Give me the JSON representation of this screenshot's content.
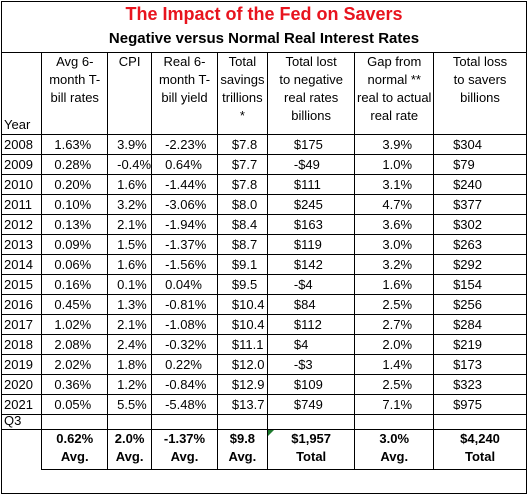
{
  "title": "The Impact of the Fed on Savers",
  "subtitle": "Negative versus Normal Real Interest Rates",
  "headers": {
    "year": "Year",
    "cols": [
      [
        "Avg 6-",
        "month T-",
        "bill rates"
      ],
      [
        "CPI"
      ],
      [
        "Real 6-",
        "month T-",
        "bill yield"
      ],
      [
        "Total",
        "savings",
        "trillions",
        "*"
      ],
      [
        "Total lost",
        "to negative",
        "real rates",
        "billions"
      ],
      [
        "Gap from",
        "normal **",
        "real to actual",
        "real rate"
      ],
      [
        "Total loss",
        "to savers",
        "billions"
      ]
    ]
  },
  "rows": [
    {
      "year": "2008",
      "cells": [
        "1.63%",
        "3.9%",
        "-2.23%",
        "$7.8",
        "$175",
        "3.9%",
        "$304"
      ]
    },
    {
      "year": "2009",
      "cells": [
        "0.28%",
        "-0.4%",
        "0.64%",
        "$7.7",
        "-$49",
        "1.0%",
        "$79"
      ]
    },
    {
      "year": "2010",
      "cells": [
        "0.20%",
        "1.6%",
        "-1.44%",
        "$7.8",
        "$111",
        "3.1%",
        "$240"
      ]
    },
    {
      "year": "2011",
      "cells": [
        "0.10%",
        "3.2%",
        "-3.06%",
        "$8.0",
        "$245",
        "4.7%",
        "$377"
      ]
    },
    {
      "year": "2012",
      "cells": [
        "0.13%",
        "2.1%",
        "-1.94%",
        "$8.4",
        "$163",
        "3.6%",
        "$302"
      ]
    },
    {
      "year": "2013",
      "cells": [
        "0.09%",
        "1.5%",
        "-1.37%",
        "$8.7",
        "$119",
        "3.0%",
        "$263"
      ]
    },
    {
      "year": "2014",
      "cells": [
        "0.06%",
        "1.6%",
        "-1.56%",
        "$9.1",
        "$142",
        "3.2%",
        "$292"
      ]
    },
    {
      "year": "2015",
      "cells": [
        "0.16%",
        "0.1%",
        "0.04%",
        "$9.5",
        "-$4",
        "1.6%",
        "$154"
      ]
    },
    {
      "year": "2016",
      "cells": [
        "0.45%",
        "1.3%",
        "-0.81%",
        "$10.4",
        "$84",
        "2.5%",
        "$256"
      ]
    },
    {
      "year": "2017",
      "cells": [
        "1.02%",
        "2.1%",
        "-1.08%",
        "$10.4",
        "$112",
        "2.7%",
        "$284"
      ]
    },
    {
      "year": "2018",
      "cells": [
        "2.08%",
        "2.4%",
        "-0.32%",
        "$11.1",
        "$4",
        "2.0%",
        "$219"
      ]
    },
    {
      "year": "2019",
      "cells": [
        "2.02%",
        "1.8%",
        "0.22%",
        "$12.0",
        "-$3",
        "1.4%",
        "$173"
      ]
    },
    {
      "year": "2020",
      "cells": [
        "0.36%",
        "1.2%",
        "-0.84%",
        "$12.9",
        "$109",
        "2.5%",
        "$323"
      ]
    },
    {
      "year": "2021",
      "cells": [
        "0.05%",
        "5.5%",
        "-5.48%",
        "$13.7",
        "$749",
        "7.1%",
        "$975"
      ]
    }
  ],
  "q3_label": "Q3",
  "totals": {
    "values": [
      "0.62%",
      "2.0%",
      "-1.37%",
      "$9.8",
      "$1,957",
      "3.0%",
      "$4,240"
    ],
    "labels": [
      "Avg.",
      "Avg.",
      "Avg.",
      "Avg.",
      "Total",
      "Avg.",
      "Total"
    ]
  },
  "colors": {
    "title": "#e8141e",
    "border": "#000000",
    "note_marker": "#1e7a2e"
  }
}
